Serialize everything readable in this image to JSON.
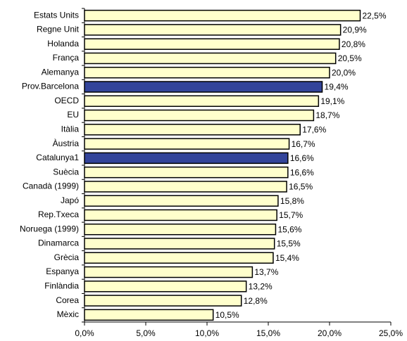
{
  "chart_data": {
    "type": "bar",
    "orientation": "horizontal",
    "categories": [
      "Estats Units",
      "Regne Unit",
      "Holanda",
      "França",
      "Alemanya",
      "Prov.Barcelona",
      "OECD",
      "EU",
      "Itàlia",
      "Àustria",
      "Catalunya1",
      "Suècia",
      "Canadà (1999)",
      "Japó",
      "Rep.Txeca",
      "Noruega (1999)",
      "Dinamarca",
      "Grècia",
      "Espanya",
      "Finlàndia",
      "Corea",
      "Mèxic"
    ],
    "values": [
      22.5,
      20.9,
      20.8,
      20.5,
      20.0,
      19.4,
      19.1,
      18.7,
      17.6,
      16.7,
      16.6,
      16.6,
      16.5,
      15.8,
      15.7,
      15.6,
      15.5,
      15.4,
      13.7,
      13.2,
      12.8,
      10.5
    ],
    "value_labels": [
      "22,5%",
      "20,9%",
      "20,8%",
      "20,5%",
      "20,0%",
      "19,4%",
      "19,1%",
      "18,7%",
      "17,6%",
      "16,7%",
      "16,6%",
      "16,6%",
      "16,5%",
      "15,8%",
      "15,7%",
      "15,6%",
      "15,5%",
      "15,4%",
      "13,7%",
      "13,2%",
      "12,8%",
      "10,5%"
    ],
    "colors": [
      "#ffffcc",
      "#ffffcc",
      "#ffffcc",
      "#ffffcc",
      "#ffffcc",
      "#33449a",
      "#ffffcc",
      "#ffffcc",
      "#ffffcc",
      "#ffffcc",
      "#33449a",
      "#ffffcc",
      "#ffffcc",
      "#ffffcc",
      "#ffffcc",
      "#ffffcc",
      "#ffffcc",
      "#ffffcc",
      "#ffffcc",
      "#ffffcc",
      "#ffffcc",
      "#ffffcc"
    ],
    "xlim": [
      0,
      25
    ],
    "xticks": [
      {
        "value": 0,
        "label": "0,0%"
      },
      {
        "value": 5,
        "label": "5,0%"
      },
      {
        "value": 10,
        "label": "10,0%"
      },
      {
        "value": 15,
        "label": "15,0%"
      },
      {
        "value": 20,
        "label": "20,0%"
      },
      {
        "value": 25,
        "label": "25,0%"
      }
    ]
  }
}
